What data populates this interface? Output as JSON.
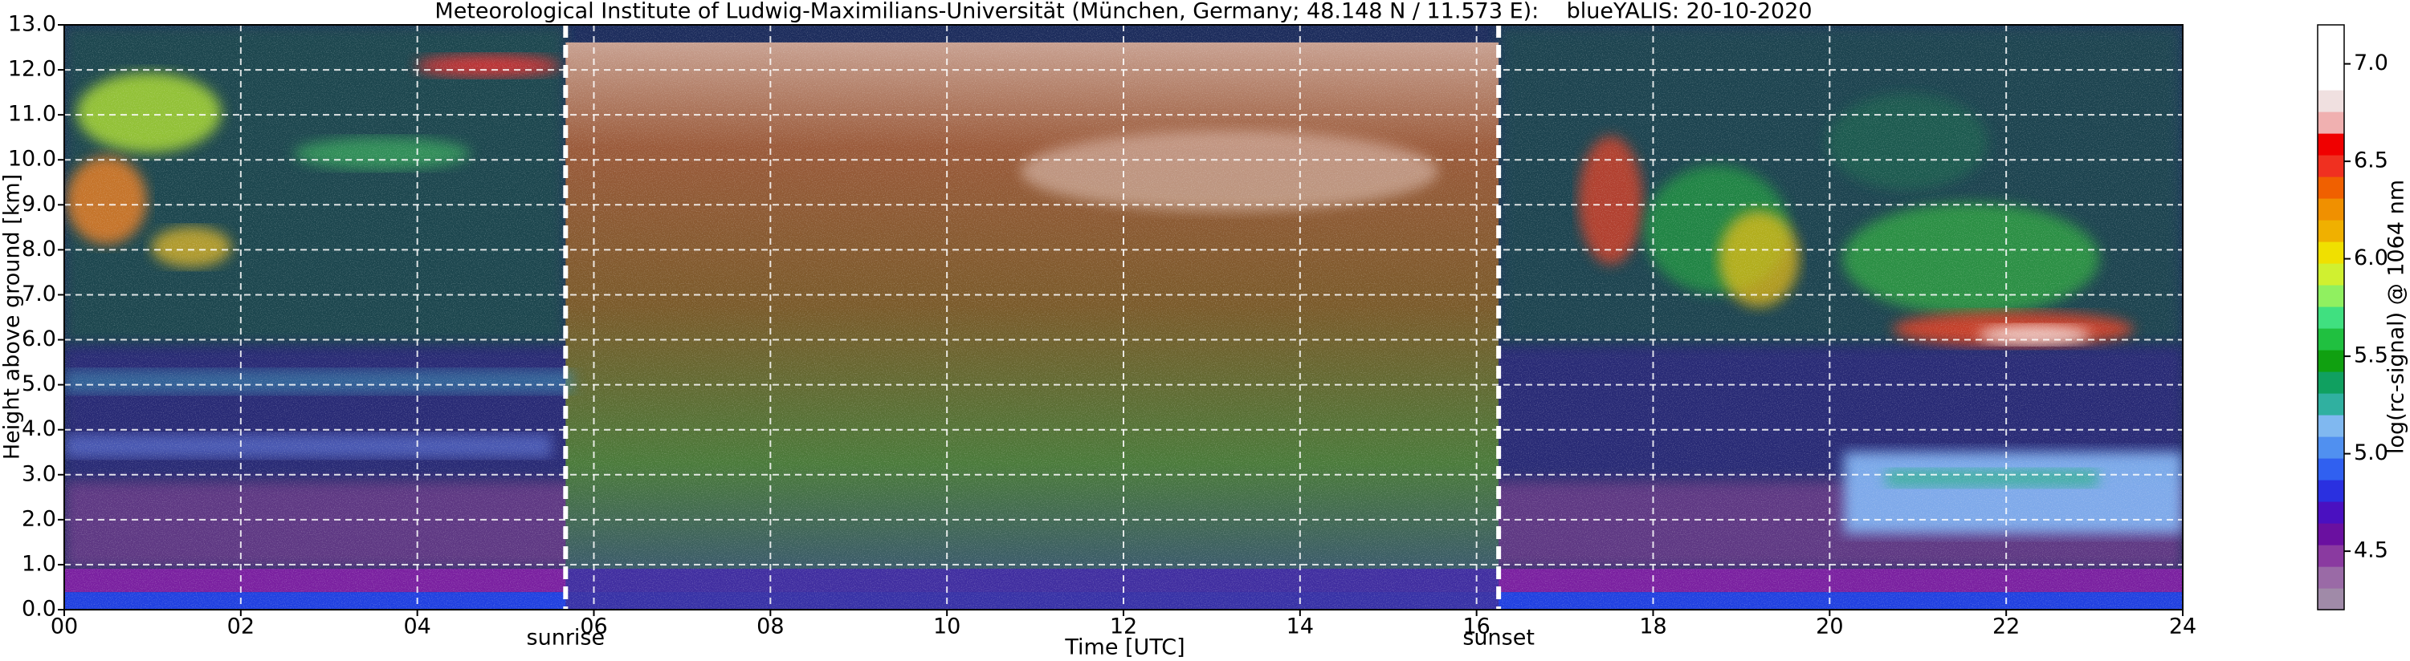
{
  "chart_data": {
    "type": "heatmap",
    "title": "Meteorological Institute of Ludwig-Maximilians-Universität (München, Germany; 48.148 N / 11.573 E):    blueYALIS: 20-10-2020",
    "xlabel": "Time [UTC]",
    "ylabel": "Height above ground [km]",
    "xlim": [
      0,
      24
    ],
    "xticks": [
      {
        "value": 0,
        "label": "00"
      },
      {
        "value": 2,
        "label": "02"
      },
      {
        "value": 4,
        "label": "04"
      },
      {
        "value": 6,
        "label": "06"
      },
      {
        "value": 8,
        "label": "08"
      },
      10,
      12,
      14,
      16,
      18,
      20,
      22,
      24
    ],
    "ylim": [
      0,
      13
    ],
    "yticks": [
      {
        "value": 0,
        "label": "0.0"
      },
      {
        "value": 1,
        "label": "1.0"
      },
      {
        "value": 2,
        "label": "2.0"
      },
      {
        "value": 3,
        "label": "3.0"
      },
      {
        "value": 4,
        "label": "4.0"
      },
      {
        "value": 5,
        "label": "5.0"
      },
      {
        "value": 6,
        "label": "6.0"
      },
      {
        "value": 7,
        "label": "7.0"
      },
      {
        "value": 8,
        "label": "8.0"
      },
      {
        "value": 9,
        "label": "9.0"
      },
      {
        "value": 10,
        "label": "10.0"
      },
      {
        "value": 11,
        "label": "11.0"
      },
      {
        "value": 12,
        "label": "12.0"
      },
      {
        "value": 13,
        "label": "13.0"
      }
    ],
    "grid": true,
    "annotations": [
      {
        "text": "sunrise",
        "x": 5.68
      },
      {
        "text": "sunset",
        "x": 16.25
      }
    ],
    "colorbar": {
      "label": "log(rc-signal) @ 1064 nm",
      "clim": [
        4.2,
        7.2
      ],
      "ticks": [
        4.5,
        {
          "value": 5,
          "label": "5.0"
        },
        5.5,
        {
          "value": 6,
          "label": "6.0"
        },
        6.5,
        {
          "value": 7,
          "label": "7.0"
        }
      ],
      "colormap": [
        "#a08aa8",
        "#9a6aa6",
        "#8a3aa0",
        "#6a10a0",
        "#4a10c0",
        "#2a30e0",
        "#3060f0",
        "#5090f0",
        "#80b8f0",
        "#30b0a0",
        "#10a060",
        "#10a010",
        "#20c040",
        "#40e080",
        "#90f060",
        "#d0f030",
        "#f0e000",
        "#f0b000",
        "#f09000",
        "#f06000",
        "#f03020",
        "#f00000",
        "#f0b0b0",
        "#f0e0e0",
        "#ffffff",
        "#ffffff",
        "#ffffff"
      ]
    }
  }
}
